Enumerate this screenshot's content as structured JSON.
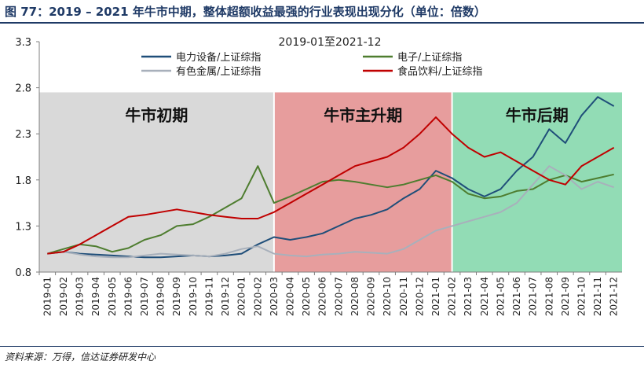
{
  "header": {
    "title": "图 77：2019 – 2021 年牛市中期，整体超额收益最强的行业表现出现分化（单位：倍数）"
  },
  "footer": {
    "source": "资料来源：万得，信达证券研发中心"
  },
  "chart_data": {
    "type": "line",
    "title": "2019-01至2021-12",
    "xlabel": "",
    "ylabel": "",
    "ylim": [
      0.8,
      3.3
    ],
    "yticks": [
      "0.8",
      "1.3",
      "1.8",
      "2.3",
      "2.8",
      "3.3"
    ],
    "xticks": [
      "2019-01",
      "2019-02",
      "2019-03",
      "2019-04",
      "2019-05",
      "2019-06",
      "2019-07",
      "2019-08",
      "2019-09",
      "2019-10",
      "2019-11",
      "2019-12",
      "2020-01",
      "2020-02",
      "2020-03",
      "2020-04",
      "2020-05",
      "2020-06",
      "2020-07",
      "2020-08",
      "2020-09",
      "2020-10",
      "2020-11",
      "2020-12",
      "2021-01",
      "2021-02",
      "2021-03",
      "2021-04",
      "2021-05",
      "2021-06",
      "2021-07",
      "2021-08",
      "2021-09",
      "2021-10",
      "2021-11",
      "2021-12"
    ],
    "legend_position": "top",
    "grid": false,
    "phases": [
      {
        "label": "牛市初期",
        "from": "2019-01",
        "to": "2020-03",
        "color": "#d9d9d9"
      },
      {
        "label": "牛市主升期",
        "from": "2020-03",
        "to": "2021-02",
        "color": "#e79d9d"
      },
      {
        "label": "牛市后期",
        "from": "2021-02",
        "to": "2021-12",
        "color": "#92dcb5"
      }
    ],
    "series": [
      {
        "name": "电力设备/上证综指",
        "color": "#1f4e79",
        "values": [
          1.0,
          1.02,
          1.0,
          0.99,
          0.98,
          0.97,
          0.96,
          0.96,
          0.97,
          0.98,
          0.97,
          0.98,
          1.0,
          1.1,
          1.18,
          1.15,
          1.18,
          1.22,
          1.3,
          1.38,
          1.42,
          1.48,
          1.6,
          1.7,
          1.9,
          1.82,
          1.7,
          1.62,
          1.7,
          1.9,
          2.05,
          2.35,
          2.2,
          2.5,
          2.7,
          2.6
        ]
      },
      {
        "name": "电子/上证综指",
        "color": "#4e7d2f",
        "values": [
          1.0,
          1.05,
          1.1,
          1.08,
          1.02,
          1.06,
          1.15,
          1.2,
          1.3,
          1.32,
          1.4,
          1.5,
          1.6,
          1.95,
          1.55,
          1.62,
          1.7,
          1.78,
          1.8,
          1.78,
          1.75,
          1.72,
          1.75,
          1.8,
          1.85,
          1.78,
          1.65,
          1.6,
          1.62,
          1.68,
          1.7,
          1.8,
          1.85,
          1.78,
          1.82,
          1.86
        ]
      },
      {
        "name": "有色金属/上证综指",
        "color": "#a8b0bb",
        "values": [
          1.0,
          1.02,
          0.99,
          0.97,
          0.96,
          0.96,
          0.98,
          1.0,
          0.99,
          0.98,
          0.97,
          1.0,
          1.05,
          1.08,
          1.0,
          0.98,
          0.97,
          0.99,
          1.0,
          1.02,
          1.01,
          1.0,
          1.05,
          1.15,
          1.25,
          1.3,
          1.35,
          1.4,
          1.45,
          1.55,
          1.75,
          1.95,
          1.85,
          1.7,
          1.78,
          1.72
        ]
      },
      {
        "name": "食品饮料/上证综指",
        "color": "#c00000",
        "values": [
          1.0,
          1.02,
          1.1,
          1.2,
          1.3,
          1.4,
          1.42,
          1.45,
          1.48,
          1.45,
          1.42,
          1.4,
          1.38,
          1.38,
          1.45,
          1.55,
          1.65,
          1.75,
          1.85,
          1.95,
          2.0,
          2.05,
          2.15,
          2.3,
          2.48,
          2.3,
          2.15,
          2.05,
          2.1,
          2.0,
          1.9,
          1.8,
          1.75,
          1.95,
          2.05,
          2.15
        ]
      }
    ]
  }
}
